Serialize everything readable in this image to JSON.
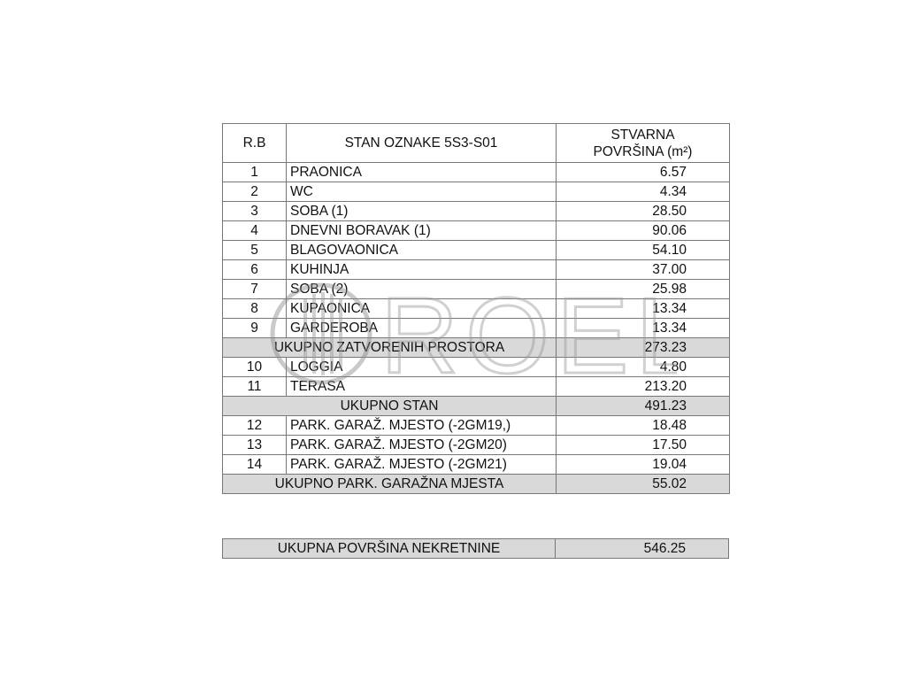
{
  "header": {
    "rb": "R.B",
    "title": "STAN OZNAKE 5S3-S01",
    "area_line1": "STVARNA",
    "area_line2": "POVRŠINA (m²)"
  },
  "rows": [
    {
      "rb": "1",
      "name": "PRAONICA",
      "area": "6.57"
    },
    {
      "rb": "2",
      "name": "WC",
      "area": "4.34"
    },
    {
      "rb": "3",
      "name": "SOBA (1)",
      "area": "28.50"
    },
    {
      "rb": "4",
      "name": "DNEVNI BORAVAK (1)",
      "area": "90.06"
    },
    {
      "rb": "5",
      "name": "BLAGOVAONICA",
      "area": "54.10"
    },
    {
      "rb": "6",
      "name": "KUHINJA",
      "area": "37.00"
    },
    {
      "rb": "7",
      "name": "SOBA (2)",
      "area": "25.98"
    },
    {
      "rb": "8",
      "name": "KUPAONICA",
      "area": "13.34"
    },
    {
      "rb": "9",
      "name": "GARDEROBA",
      "area": "13.34"
    },
    {
      "sum": true,
      "name": "UKUPNO ZATVORENIH PROSTORA",
      "area": "273.23"
    },
    {
      "rb": "10",
      "name": "LOGGIA",
      "area": "4.80"
    },
    {
      "rb": "11",
      "name": "TERASA",
      "area": "213.20"
    },
    {
      "sum": true,
      "name": "UKUPNO STAN",
      "area": "491.23"
    },
    {
      "rb": "12",
      "name": "PARK. GARAŽ. MJESTO (-2GM19,)",
      "area": "18.48"
    },
    {
      "rb": "13",
      "name": "PARK. GARAŽ. MJESTO (-2GM20)",
      "area": "17.50"
    },
    {
      "rb": "14",
      "name": "PARK. GARAŽ. MJESTO (-2GM21)",
      "area": "19.04"
    },
    {
      "sum": true,
      "name": "UKUPNO PARK. GARAŽNA MJESTA",
      "area": "55.02"
    }
  ],
  "total": {
    "label": "UKUPNA POVRŠINA NEKRETNINE",
    "area": "546.25"
  },
  "watermark": {
    "text": "ROEL"
  }
}
